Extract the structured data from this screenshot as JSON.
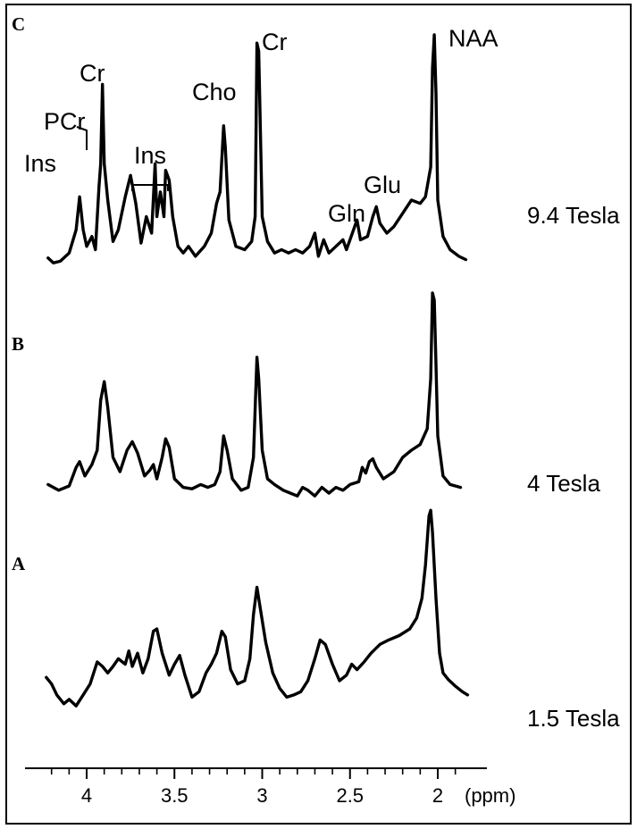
{
  "chart_data": {
    "type": "line",
    "x_unit_label": "(ppm)",
    "x_reversed": true,
    "xlim": [
      4.25,
      1.8
    ],
    "x_ticks": [
      {
        "value": 4,
        "label": "4"
      },
      {
        "value": 3.5,
        "label": "3.5"
      },
      {
        "value": 3,
        "label": "3"
      },
      {
        "value": 2.5,
        "label": "2.5"
      },
      {
        "value": 2,
        "label": "2"
      }
    ],
    "panels": [
      {
        "panel_label": "C",
        "field_label": "9.4 Tesla",
        "peak_labels": [
          {
            "text": "Ins",
            "x": 4.05
          },
          {
            "text": "PCr",
            "x": 3.93
          },
          {
            "text": "Cr",
            "x": 3.91
          },
          {
            "text": "Ins",
            "x": 3.57
          },
          {
            "text": "Cho",
            "x": 3.21
          },
          {
            "text": "Cr",
            "x": 3.02
          },
          {
            "text": "Gln",
            "x": 2.46
          },
          {
            "text": "Glu",
            "x": 2.36
          },
          {
            "text": "NAA",
            "x": 2.02
          }
        ],
        "points": [
          [
            4.22,
            0.05
          ],
          [
            4.19,
            0.02
          ],
          [
            4.15,
            0.03
          ],
          [
            4.1,
            0.08
          ],
          [
            4.06,
            0.22
          ],
          [
            4.04,
            0.42
          ],
          [
            4.02,
            0.22
          ],
          [
            4.0,
            0.12
          ],
          [
            3.97,
            0.18
          ],
          [
            3.95,
            0.1
          ],
          [
            3.93,
            0.48
          ],
          [
            3.92,
            0.62
          ],
          [
            3.91,
            1.1
          ],
          [
            3.9,
            0.62
          ],
          [
            3.88,
            0.4
          ],
          [
            3.85,
            0.15
          ],
          [
            3.82,
            0.22
          ],
          [
            3.78,
            0.42
          ],
          [
            3.75,
            0.55
          ],
          [
            3.72,
            0.38
          ],
          [
            3.69,
            0.14
          ],
          [
            3.66,
            0.3
          ],
          [
            3.63,
            0.2
          ],
          [
            3.61,
            0.62
          ],
          [
            3.6,
            0.3
          ],
          [
            3.58,
            0.45
          ],
          [
            3.56,
            0.3
          ],
          [
            3.55,
            0.58
          ],
          [
            3.53,
            0.52
          ],
          [
            3.51,
            0.3
          ],
          [
            3.48,
            0.12
          ],
          [
            3.45,
            0.08
          ],
          [
            3.42,
            0.12
          ],
          [
            3.38,
            0.06
          ],
          [
            3.33,
            0.12
          ],
          [
            3.29,
            0.2
          ],
          [
            3.26,
            0.38
          ],
          [
            3.24,
            0.45
          ],
          [
            3.22,
            0.85
          ],
          [
            3.21,
            0.72
          ],
          [
            3.19,
            0.28
          ],
          [
            3.15,
            0.12
          ],
          [
            3.1,
            0.1
          ],
          [
            3.06,
            0.15
          ],
          [
            3.04,
            0.3
          ],
          [
            3.03,
            1.35
          ],
          [
            3.02,
            1.3
          ],
          [
            3.0,
            0.3
          ],
          [
            2.97,
            0.15
          ],
          [
            2.93,
            0.08
          ],
          [
            2.89,
            0.1
          ],
          [
            2.85,
            0.08
          ],
          [
            2.81,
            0.1
          ],
          [
            2.77,
            0.08
          ],
          [
            2.73,
            0.12
          ],
          [
            2.7,
            0.2
          ],
          [
            2.68,
            0.06
          ],
          [
            2.65,
            0.16
          ],
          [
            2.62,
            0.08
          ],
          [
            2.58,
            0.12
          ],
          [
            2.54,
            0.16
          ],
          [
            2.52,
            0.1
          ],
          [
            2.48,
            0.22
          ],
          [
            2.46,
            0.28
          ],
          [
            2.44,
            0.16
          ],
          [
            2.4,
            0.18
          ],
          [
            2.37,
            0.3
          ],
          [
            2.35,
            0.36
          ],
          [
            2.33,
            0.26
          ],
          [
            2.29,
            0.2
          ],
          [
            2.25,
            0.24
          ],
          [
            2.2,
            0.32
          ],
          [
            2.15,
            0.4
          ],
          [
            2.1,
            0.38
          ],
          [
            2.07,
            0.42
          ],
          [
            2.04,
            0.6
          ],
          [
            2.03,
            1.2
          ],
          [
            2.02,
            1.4
          ],
          [
            2.01,
            1.05
          ],
          [
            2.0,
            0.4
          ],
          [
            1.97,
            0.18
          ],
          [
            1.93,
            0.1
          ],
          [
            1.88,
            0.06
          ],
          [
            1.84,
            0.04
          ]
        ]
      },
      {
        "panel_label": "B",
        "field_label": "4 Tesla",
        "peak_labels": [],
        "points": [
          [
            4.22,
            0.06
          ],
          [
            4.16,
            0.02
          ],
          [
            4.1,
            0.05
          ],
          [
            4.06,
            0.18
          ],
          [
            4.04,
            0.22
          ],
          [
            4.01,
            0.12
          ],
          [
            3.97,
            0.2
          ],
          [
            3.94,
            0.3
          ],
          [
            3.92,
            0.65
          ],
          [
            3.9,
            0.78
          ],
          [
            3.88,
            0.6
          ],
          [
            3.85,
            0.25
          ],
          [
            3.81,
            0.15
          ],
          [
            3.77,
            0.3
          ],
          [
            3.74,
            0.36
          ],
          [
            3.71,
            0.28
          ],
          [
            3.67,
            0.12
          ],
          [
            3.64,
            0.16
          ],
          [
            3.62,
            0.2
          ],
          [
            3.6,
            0.1
          ],
          [
            3.57,
            0.25
          ],
          [
            3.55,
            0.38
          ],
          [
            3.53,
            0.32
          ],
          [
            3.5,
            0.1
          ],
          [
            3.45,
            0.04
          ],
          [
            3.4,
            0.03
          ],
          [
            3.35,
            0.06
          ],
          [
            3.31,
            0.04
          ],
          [
            3.27,
            0.06
          ],
          [
            3.24,
            0.15
          ],
          [
            3.22,
            0.4
          ],
          [
            3.2,
            0.3
          ],
          [
            3.17,
            0.1
          ],
          [
            3.12,
            0.02
          ],
          [
            3.08,
            0.04
          ],
          [
            3.05,
            0.25
          ],
          [
            3.03,
            0.95
          ],
          [
            3.02,
            0.8
          ],
          [
            3.0,
            0.3
          ],
          [
            2.97,
            0.1
          ],
          [
            2.93,
            0.06
          ],
          [
            2.88,
            0.02
          ],
          [
            2.84,
            0.0
          ],
          [
            2.8,
            -0.02
          ],
          [
            2.77,
            0.04
          ],
          [
            2.74,
            0.02
          ],
          [
            2.7,
            -0.02
          ],
          [
            2.66,
            0.04
          ],
          [
            2.62,
            0.0
          ],
          [
            2.58,
            0.04
          ],
          [
            2.54,
            0.02
          ],
          [
            2.5,
            0.06
          ],
          [
            2.45,
            0.08
          ],
          [
            2.43,
            0.18
          ],
          [
            2.41,
            0.14
          ],
          [
            2.39,
            0.22
          ],
          [
            2.37,
            0.24
          ],
          [
            2.35,
            0.18
          ],
          [
            2.31,
            0.1
          ],
          [
            2.25,
            0.15
          ],
          [
            2.2,
            0.25
          ],
          [
            2.15,
            0.3
          ],
          [
            2.1,
            0.34
          ],
          [
            2.06,
            0.45
          ],
          [
            2.04,
            0.8
          ],
          [
            2.03,
            1.4
          ],
          [
            2.02,
            1.35
          ],
          [
            2.01,
            0.9
          ],
          [
            2.0,
            0.4
          ],
          [
            1.97,
            0.12
          ],
          [
            1.93,
            0.06
          ],
          [
            1.87,
            0.04
          ]
        ]
      },
      {
        "panel_label": "A",
        "field_label": "1.5 Tesla",
        "peak_labels": [],
        "points": [
          [
            4.23,
            0.38
          ],
          [
            4.2,
            0.32
          ],
          [
            4.17,
            0.22
          ],
          [
            4.13,
            0.14
          ],
          [
            4.1,
            0.18
          ],
          [
            4.06,
            0.12
          ],
          [
            4.02,
            0.22
          ],
          [
            3.98,
            0.32
          ],
          [
            3.94,
            0.52
          ],
          [
            3.91,
            0.48
          ],
          [
            3.88,
            0.42
          ],
          [
            3.85,
            0.48
          ],
          [
            3.82,
            0.55
          ],
          [
            3.78,
            0.5
          ],
          [
            3.76,
            0.62
          ],
          [
            3.74,
            0.48
          ],
          [
            3.71,
            0.6
          ],
          [
            3.68,
            0.42
          ],
          [
            3.65,
            0.55
          ],
          [
            3.62,
            0.8
          ],
          [
            3.6,
            0.82
          ],
          [
            3.57,
            0.6
          ],
          [
            3.53,
            0.4
          ],
          [
            3.5,
            0.5
          ],
          [
            3.47,
            0.58
          ],
          [
            3.44,
            0.4
          ],
          [
            3.4,
            0.2
          ],
          [
            3.36,
            0.25
          ],
          [
            3.32,
            0.42
          ],
          [
            3.29,
            0.5
          ],
          [
            3.26,
            0.6
          ],
          [
            3.23,
            0.8
          ],
          [
            3.21,
            0.75
          ],
          [
            3.18,
            0.45
          ],
          [
            3.14,
            0.32
          ],
          [
            3.1,
            0.35
          ],
          [
            3.07,
            0.55
          ],
          [
            3.05,
            0.95
          ],
          [
            3.03,
            1.2
          ],
          [
            3.01,
            1.0
          ],
          [
            2.98,
            0.7
          ],
          [
            2.94,
            0.42
          ],
          [
            2.9,
            0.28
          ],
          [
            2.86,
            0.2
          ],
          [
            2.82,
            0.22
          ],
          [
            2.78,
            0.25
          ],
          [
            2.74,
            0.35
          ],
          [
            2.7,
            0.55
          ],
          [
            2.67,
            0.72
          ],
          [
            2.64,
            0.68
          ],
          [
            2.6,
            0.5
          ],
          [
            2.56,
            0.35
          ],
          [
            2.52,
            0.4
          ],
          [
            2.49,
            0.5
          ],
          [
            2.46,
            0.45
          ],
          [
            2.42,
            0.52
          ],
          [
            2.38,
            0.6
          ],
          [
            2.33,
            0.68
          ],
          [
            2.28,
            0.72
          ],
          [
            2.22,
            0.76
          ],
          [
            2.16,
            0.82
          ],
          [
            2.12,
            0.92
          ],
          [
            2.09,
            1.1
          ],
          [
            2.07,
            1.4
          ],
          [
            2.05,
            1.85
          ],
          [
            2.04,
            1.9
          ],
          [
            2.03,
            1.7
          ],
          [
            2.01,
            1.1
          ],
          [
            1.99,
            0.6
          ],
          [
            1.97,
            0.42
          ],
          [
            1.94,
            0.36
          ],
          [
            1.9,
            0.3
          ],
          [
            1.86,
            0.25
          ],
          [
            1.83,
            0.22
          ]
        ]
      }
    ]
  }
}
